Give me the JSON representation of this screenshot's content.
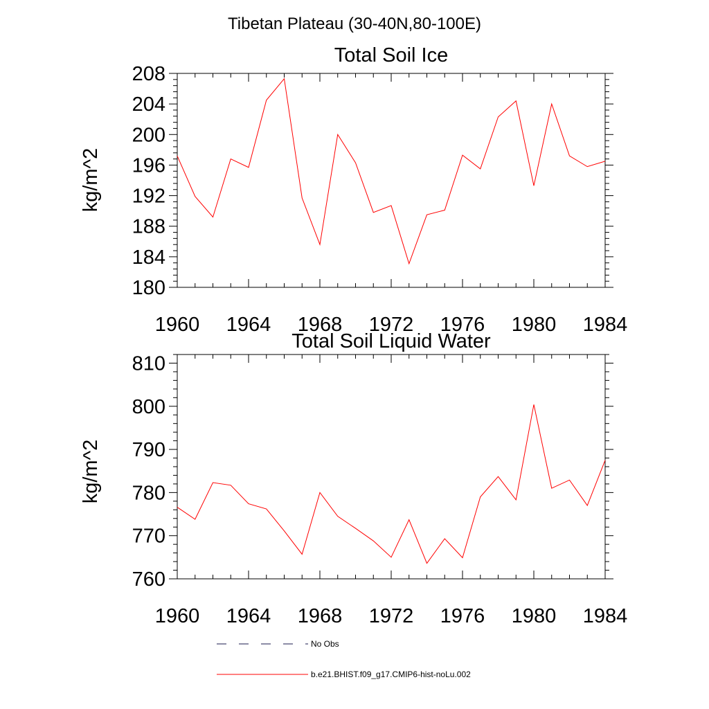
{
  "page_title": "Tibetan Plateau (30-40N,80-100E)",
  "legend": [
    {
      "label": "No Obs",
      "color": "#1a1a4d",
      "style": "dashed"
    },
    {
      "label": "b.e21.BHIST.f09_g17.CMIP6-hist-noLu.002",
      "color": "#ff0000",
      "style": "solid"
    }
  ],
  "chart_data": [
    {
      "type": "line",
      "title": "Total Soil Ice",
      "xlabel": "",
      "ylabel": "kg/m^2",
      "xlim": [
        1960,
        1984
      ],
      "ylim": [
        180,
        208
      ],
      "xticks": [
        1960,
        1964,
        1968,
        1972,
        1976,
        1980,
        1984
      ],
      "yticks": [
        180,
        184,
        188,
        192,
        196,
        200,
        204,
        208
      ],
      "x": [
        1960,
        1961,
        1962,
        1963,
        1964,
        1965,
        1966,
        1967,
        1968,
        1969,
        1970,
        1971,
        1972,
        1973,
        1974,
        1975,
        1976,
        1977,
        1978,
        1979,
        1980,
        1981,
        1982,
        1983,
        1984
      ],
      "series": [
        {
          "name": "b.e21.BHIST.f09_g17.CMIP6-hist-noLu.002",
          "color": "#ff0000",
          "values": [
            197.2,
            191.9,
            189.2,
            196.8,
            195.7,
            204.5,
            207.3,
            191.7,
            185.6,
            200.0,
            196.3,
            189.8,
            190.7,
            183.1,
            189.5,
            190.1,
            197.3,
            195.5,
            202.3,
            204.4,
            193.3,
            204.0,
            197.2,
            195.8,
            196.5
          ]
        }
      ],
      "grid": false
    },
    {
      "type": "line",
      "title": "Total Soil Liquid Water",
      "xlabel": "",
      "ylabel": "kg/m^2",
      "xlim": [
        1960,
        1984
      ],
      "ylim": [
        760,
        812
      ],
      "xticks": [
        1960,
        1964,
        1968,
        1972,
        1976,
        1980,
        1984
      ],
      "yticks": [
        760,
        770,
        780,
        790,
        800,
        810
      ],
      "x": [
        1960,
        1961,
        1962,
        1963,
        1964,
        1965,
        1966,
        1967,
        1968,
        1969,
        1970,
        1971,
        1972,
        1973,
        1974,
        1975,
        1976,
        1977,
        1978,
        1979,
        1980,
        1981,
        1982,
        1983,
        1984
      ],
      "series": [
        {
          "name": "b.e21.BHIST.f09_g17.CMIP6-hist-noLu.002",
          "color": "#ff0000",
          "values": [
            776.6,
            773.8,
            782.3,
            781.7,
            777.4,
            776.2,
            771.1,
            765.7,
            780.0,
            774.5,
            771.7,
            768.8,
            765.0,
            773.7,
            763.6,
            769.3,
            764.9,
            779.0,
            783.7,
            778.3,
            800.4,
            781.0,
            782.9,
            777.0,
            787.5
          ]
        }
      ],
      "grid": false
    }
  ]
}
